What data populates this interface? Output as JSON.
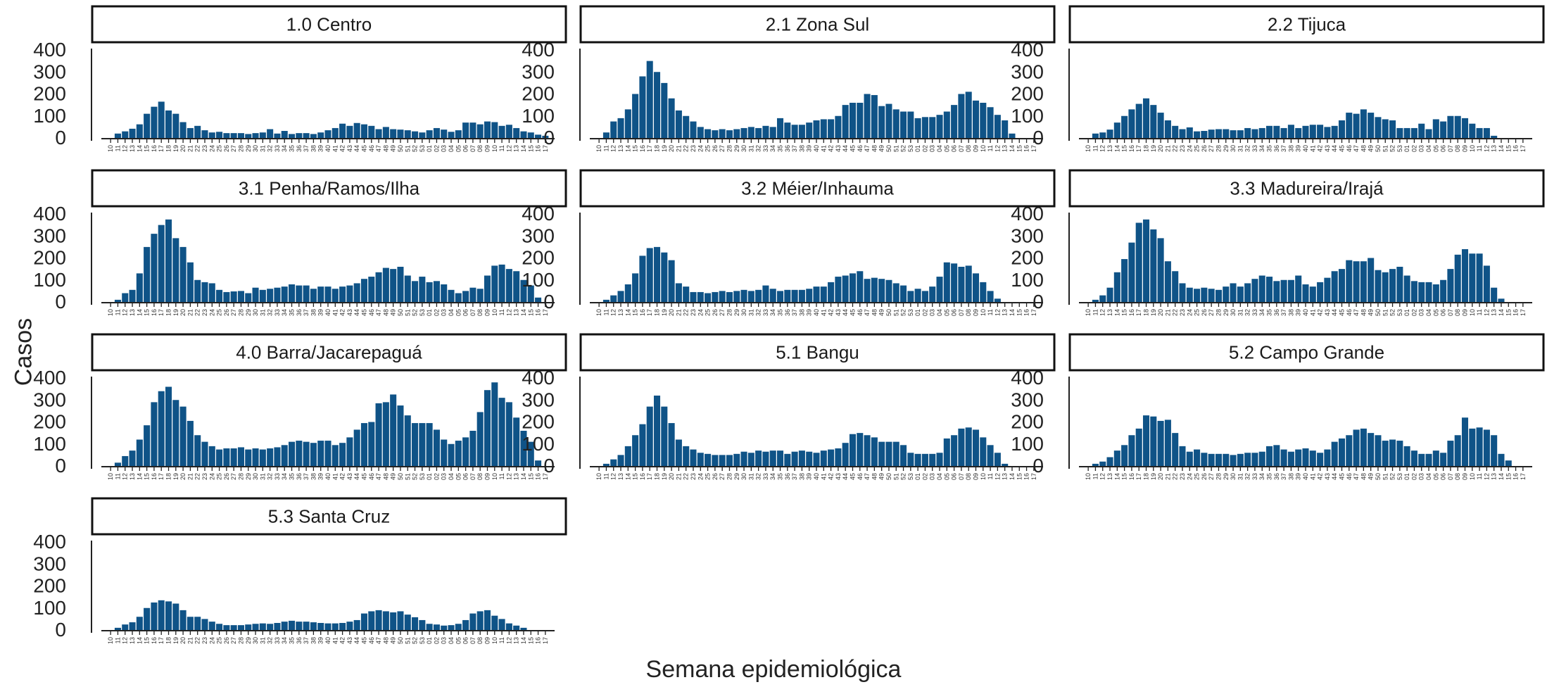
{
  "chart_data": {
    "type": "bar",
    "xlabel": "Semana epidemiológica",
    "ylabel": "Casos",
    "ylim": [
      0,
      400
    ],
    "yticks": [
      0,
      100,
      200,
      300,
      400
    ],
    "bar_color": "#0f5387",
    "grid": false,
    "weeks": [
      "10",
      "11",
      "12",
      "13",
      "14",
      "15",
      "16",
      "17",
      "18",
      "19",
      "20",
      "21",
      "22",
      "23",
      "24",
      "25",
      "26",
      "27",
      "28",
      "29",
      "30",
      "31",
      "32",
      "33",
      "34",
      "35",
      "36",
      "37",
      "38",
      "39",
      "40",
      "41",
      "42",
      "43",
      "44",
      "45",
      "46",
      "47",
      "48",
      "49",
      "50",
      "51",
      "52",
      "53",
      "01",
      "02",
      "03",
      "04",
      "05",
      "06",
      "07",
      "08",
      "09",
      "10",
      "11",
      "12",
      "13",
      "14",
      "15",
      "16",
      "17"
    ],
    "panels": [
      {
        "title": "1.0 Centro",
        "values": [
          0,
          20,
          30,
          42,
          62,
          110,
          142,
          165,
          125,
          110,
          72,
          45,
          55,
          35,
          25,
          28,
          22,
          22,
          22,
          18,
          22,
          25,
          40,
          20,
          32,
          18,
          22,
          22,
          18,
          25,
          35,
          45,
          65,
          55,
          68,
          62,
          55,
          40,
          50,
          40,
          38,
          35,
          30,
          25,
          35,
          45,
          38,
          28,
          35,
          70,
          70,
          62,
          75,
          72,
          55,
          60,
          45,
          30,
          25,
          15,
          10
        ]
      },
      {
        "title": "2.1 Zona Sul",
        "values": [
          0,
          25,
          75,
          90,
          130,
          200,
          280,
          350,
          300,
          250,
          180,
          125,
          100,
          75,
          50,
          40,
          35,
          40,
          35,
          40,
          45,
          50,
          45,
          55,
          50,
          90,
          70,
          60,
          60,
          70,
          80,
          85,
          85,
          100,
          150,
          160,
          160,
          200,
          195,
          145,
          155,
          130,
          120,
          120,
          90,
          95,
          95,
          105,
          120,
          150,
          200,
          210,
          170,
          160,
          140,
          105,
          80,
          20,
          0,
          0,
          0
        ]
      },
      {
        "title": "2.2 Tijuca",
        "values": [
          0,
          20,
          25,
          38,
          70,
          100,
          130,
          155,
          180,
          150,
          115,
          80,
          55,
          40,
          48,
          30,
          32,
          38,
          40,
          40,
          35,
          35,
          45,
          40,
          45,
          55,
          55,
          45,
          60,
          45,
          55,
          60,
          60,
          50,
          55,
          80,
          115,
          110,
          130,
          115,
          95,
          85,
          80,
          45,
          45,
          45,
          65,
          40,
          85,
          75,
          100,
          100,
          90,
          65,
          45,
          45,
          10,
          0,
          0,
          0,
          0
        ]
      },
      {
        "title": "3.1 Penha/Ramos/Ilha",
        "values": [
          0,
          10,
          40,
          55,
          130,
          250,
          310,
          350,
          375,
          290,
          250,
          180,
          100,
          90,
          85,
          55,
          45,
          48,
          50,
          40,
          65,
          55,
          60,
          65,
          70,
          80,
          75,
          75,
          60,
          70,
          70,
          60,
          70,
          75,
          85,
          105,
          115,
          135,
          155,
          150,
          160,
          120,
          95,
          115,
          90,
          95,
          80,
          55,
          40,
          50,
          65,
          60,
          120,
          165,
          170,
          150,
          140,
          100,
          75,
          20,
          0
        ]
      },
      {
        "title": "3.2 Méier/Inhauma",
        "values": [
          0,
          10,
          30,
          50,
          80,
          130,
          210,
          245,
          250,
          225,
          190,
          85,
          70,
          45,
          45,
          40,
          45,
          50,
          45,
          50,
          55,
          50,
          55,
          75,
          60,
          50,
          55,
          55,
          55,
          60,
          70,
          70,
          90,
          115,
          120,
          130,
          140,
          105,
          110,
          105,
          100,
          85,
          75,
          50,
          60,
          50,
          70,
          115,
          180,
          175,
          160,
          165,
          130,
          90,
          50,
          15,
          0,
          0,
          0,
          0,
          0
        ]
      },
      {
        "title": "3.3 Madureira/Irajá",
        "values": [
          0,
          10,
          30,
          65,
          135,
          195,
          270,
          360,
          375,
          330,
          290,
          185,
          140,
          85,
          65,
          60,
          65,
          60,
          55,
          70,
          85,
          70,
          85,
          105,
          120,
          115,
          95,
          100,
          100,
          120,
          80,
          70,
          90,
          110,
          140,
          150,
          190,
          185,
          185,
          200,
          145,
          135,
          150,
          160,
          120,
          95,
          90,
          90,
          80,
          100,
          150,
          215,
          240,
          220,
          220,
          165,
          65,
          15,
          0,
          0,
          0
        ]
      },
      {
        "title": "4.0 Barra/Jacarepaguá",
        "values": [
          0,
          15,
          45,
          70,
          120,
          185,
          290,
          340,
          360,
          300,
          270,
          205,
          140,
          110,
          90,
          75,
          80,
          80,
          85,
          75,
          80,
          75,
          80,
          85,
          95,
          110,
          115,
          110,
          105,
          115,
          115,
          95,
          105,
          130,
          165,
          195,
          200,
          285,
          290,
          325,
          275,
          230,
          195,
          195,
          195,
          165,
          120,
          100,
          115,
          130,
          160,
          245,
          345,
          380,
          310,
          290,
          220,
          160,
          110,
          25,
          0
        ]
      },
      {
        "title": "5.1 Bangu",
        "values": [
          0,
          10,
          30,
          50,
          90,
          140,
          190,
          270,
          320,
          270,
          195,
          120,
          90,
          75,
          60,
          55,
          50,
          50,
          50,
          55,
          65,
          60,
          70,
          65,
          70,
          70,
          55,
          65,
          70,
          65,
          60,
          70,
          75,
          80,
          105,
          145,
          150,
          140,
          130,
          110,
          110,
          110,
          95,
          60,
          55,
          55,
          55,
          60,
          125,
          140,
          170,
          175,
          165,
          130,
          95,
          60,
          10,
          0,
          0,
          0,
          0
        ]
      },
      {
        "title": "5.2 Campo Grande",
        "values": [
          0,
          10,
          20,
          40,
          70,
          95,
          140,
          170,
          230,
          225,
          205,
          210,
          150,
          90,
          65,
          75,
          60,
          55,
          55,
          55,
          50,
          55,
          60,
          60,
          65,
          90,
          95,
          75,
          65,
          75,
          80,
          70,
          60,
          75,
          110,
          125,
          140,
          165,
          170,
          150,
          140,
          115,
          120,
          115,
          90,
          70,
          55,
          55,
          70,
          60,
          115,
          140,
          220,
          170,
          175,
          165,
          140,
          55,
          25,
          0,
          0
        ]
      },
      {
        "title": "5.3 Santa Cruz",
        "values": [
          0,
          10,
          25,
          35,
          60,
          100,
          125,
          135,
          130,
          120,
          90,
          60,
          60,
          50,
          38,
          28,
          22,
          22,
          22,
          25,
          28,
          30,
          28,
          32,
          38,
          42,
          38,
          38,
          35,
          32,
          30,
          30,
          32,
          38,
          45,
          75,
          85,
          90,
          85,
          80,
          85,
          70,
          58,
          45,
          28,
          25,
          20,
          22,
          28,
          45,
          75,
          85,
          90,
          65,
          50,
          30,
          20,
          10,
          0,
          0,
          0
        ]
      }
    ]
  }
}
